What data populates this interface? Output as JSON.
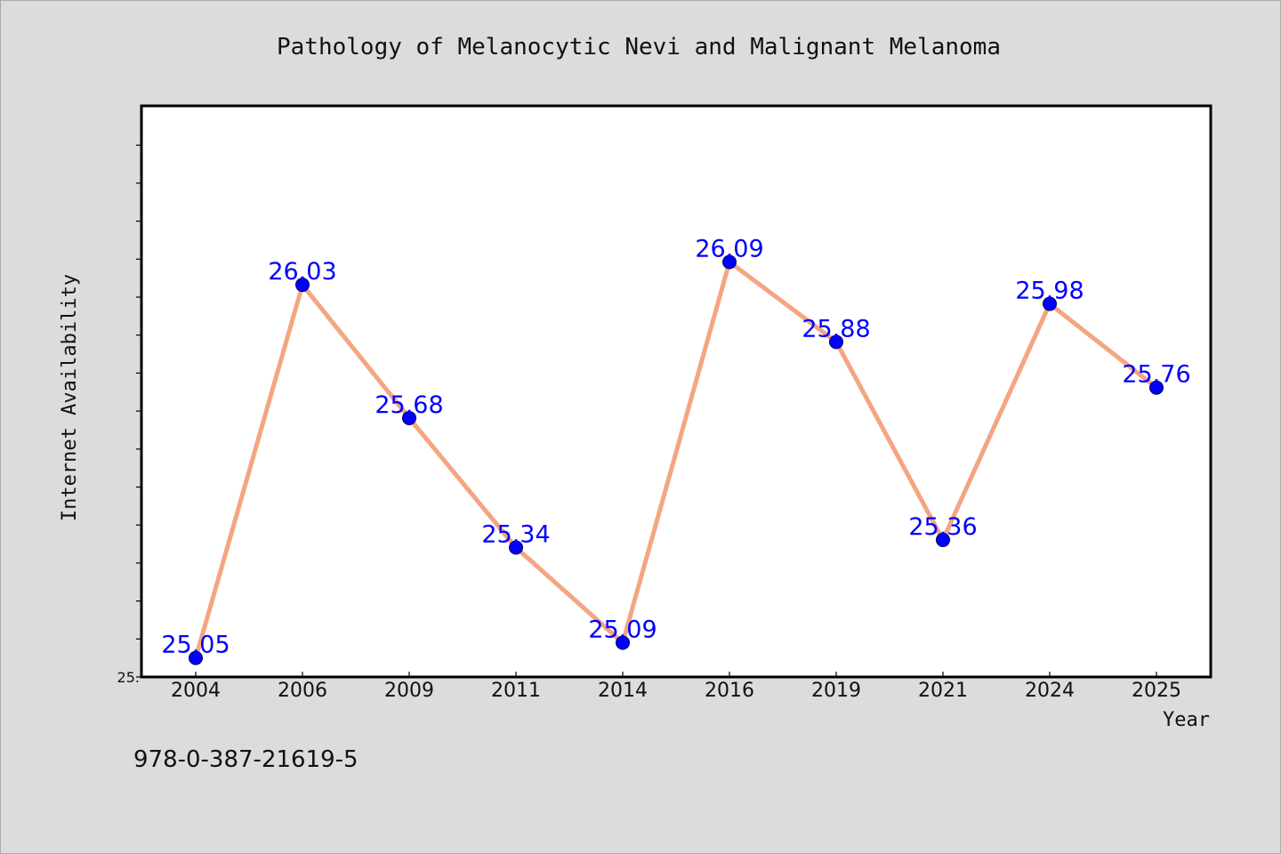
{
  "chart_data": {
    "type": "line",
    "title": "Pathology of Melanocytic Nevi and Malignant Melanoma",
    "xlabel": "Year",
    "ylabel": "Internet Availability",
    "categories": [
      "2004",
      "2006",
      "2009",
      "2011",
      "2014",
      "2016",
      "2019",
      "2021",
      "2024",
      "2025"
    ],
    "series": [
      {
        "values": [
          25.05,
          26.03,
          25.68,
          25.34,
          25.09,
          26.09,
          25.88,
          25.36,
          25.98,
          25.76
        ],
        "data_labels": [
          "25.05",
          "26.03",
          "25.68",
          "25.34",
          "25.09",
          "26.09",
          "25.88",
          "25.36",
          "25.98",
          "25.76"
        ]
      }
    ],
    "ylim": [
      25.0,
      26.5
    ],
    "y_tick_labels": [
      "25."
    ],
    "grid": false,
    "legend": "none",
    "colors": {
      "line": "#f4a582",
      "marker": "#0000ff",
      "marker_edge": "#00005a",
      "data_label": "#0000ff",
      "background": "#dcdcdc",
      "plot_area": "#ffffff"
    }
  },
  "footer_text": "978-0-387-21619-5"
}
